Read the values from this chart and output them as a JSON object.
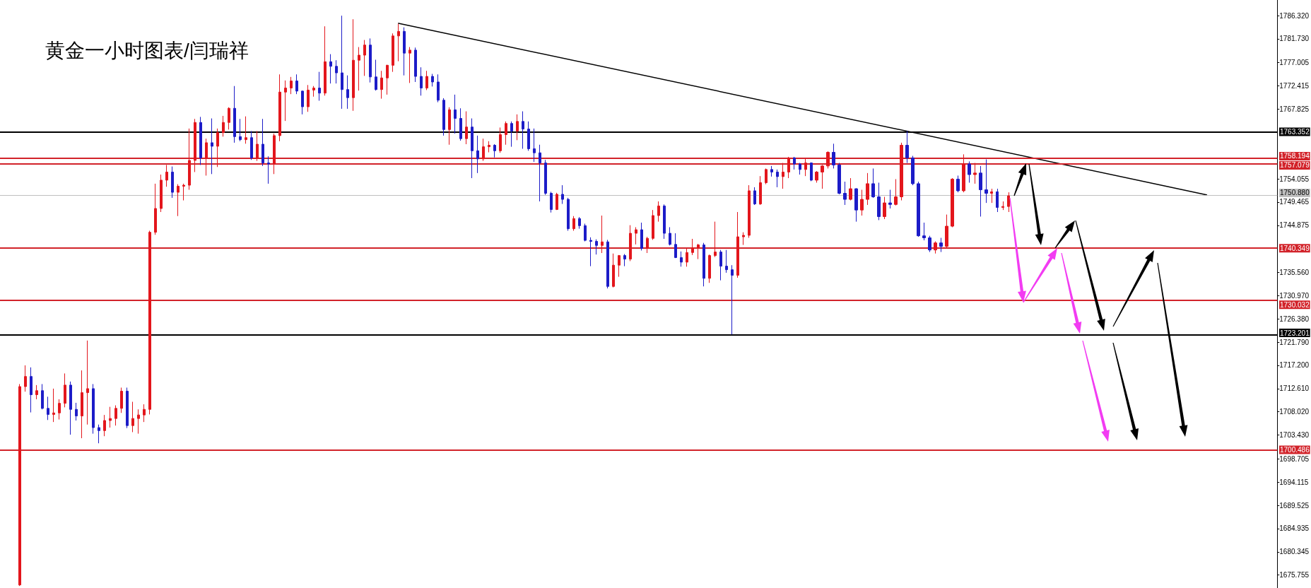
{
  "chart_data": {
    "type": "candlestick",
    "title": "黄金一小时图表/闫瑞祥",
    "categories": [
      null,
      null,
      null,
      null,
      null,
      null,
      null,
      null,
      null,
      null,
      null,
      null,
      null,
      null,
      null,
      null,
      null,
      null,
      null,
      null,
      null,
      null,
      null,
      null,
      null,
      null,
      null,
      null,
      null,
      null,
      null,
      null,
      null,
      null,
      null,
      null,
      null,
      null,
      null,
      null,
      null,
      null,
      null,
      null,
      null,
      null,
      null,
      null,
      null,
      null,
      null,
      null,
      null,
      null,
      null,
      null,
      null,
      null,
      null,
      null,
      null,
      null,
      null,
      null,
      null,
      null,
      null,
      null,
      null,
      null,
      null,
      null,
      null,
      null,
      null,
      null,
      null,
      null,
      null,
      null,
      null,
      null,
      null,
      null,
      null,
      null,
      null,
      null,
      null,
      null,
      null,
      null,
      null,
      null,
      null,
      null,
      null,
      null,
      null,
      null,
      null,
      null,
      null,
      null,
      null,
      null,
      null,
      null,
      null,
      null,
      null,
      null,
      null,
      null,
      null,
      null,
      null,
      null,
      null,
      null,
      null,
      null,
      null,
      null,
      null,
      null,
      null,
      null,
      null,
      null,
      null,
      null,
      null,
      null,
      null,
      null,
      null,
      null,
      null,
      null,
      null,
      null,
      null,
      null,
      null,
      null,
      null,
      null,
      null,
      null,
      null,
      null,
      null,
      null,
      null,
      null,
      null,
      null,
      null,
      null,
      null,
      null,
      null,
      null,
      null,
      null,
      null,
      null,
      null,
      null,
      null,
      null,
      null,
      null,
      null,
      null,
      null,
      null,
      null,
      null,
      null,
      null,
      null,
      null,
      null,
      null,
      null,
      null,
      null,
      null,
      null,
      null,
      null,
      null,
      null,
      null,
      null,
      null,
      null,
      null,
      null,
      null,
      null,
      null,
      null,
      null,
      null,
      null,
      null,
      null,
      null,
      null,
      null,
      null,
      null,
      null,
      null,
      null,
      null,
      null,
      null,
      null,
      null,
      null,
      null,
      null
    ],
    "ohlc": [
      null,
      null,
      null,
      [
        1673.8,
        1713.5,
        1673.6,
        1713.0
      ],
      [
        1713.0,
        1717.2,
        1712.0,
        1715.0
      ],
      [
        1715.0,
        1716.8,
        1707.9,
        1711.4
      ],
      [
        1711.4,
        1713.3,
        1710.5,
        1712.2
      ],
      [
        1712.2,
        1713.5,
        1708.5,
        1708.7
      ],
      [
        1708.7,
        1711.0,
        1706.4,
        1707.5
      ],
      [
        1707.5,
        1712.6,
        1706.0,
        1707.8
      ],
      [
        1707.8,
        1710.5,
        1706.5,
        1709.7
      ],
      [
        1709.7,
        1715.6,
        1708.9,
        1713.3
      ],
      [
        1713.3,
        1714.0,
        1703.5,
        1708.5
      ],
      [
        1708.5,
        1709.8,
        1706.3,
        1707.2
      ],
      [
        1707.2,
        1716.2,
        1702.8,
        1711.8
      ],
      [
        1711.8,
        1722.1,
        1705.5,
        1712.6
      ],
      [
        1712.6,
        1713.5,
        1703.7,
        1704.9
      ],
      [
        1704.9,
        1705.5,
        1701.8,
        1704.3
      ],
      [
        1704.3,
        1707.4,
        1703.2,
        1706.3
      ],
      [
        1706.3,
        1709.0,
        1704.9,
        1706.7
      ],
      [
        1706.7,
        1709.3,
        1705.3,
        1708.7
      ],
      [
        1708.7,
        1712.8,
        1707.8,
        1712.1
      ],
      [
        1712.1,
        1712.8,
        1704.8,
        1705.3
      ],
      [
        1705.3,
        1710.0,
        1704.0,
        1706.7
      ],
      [
        1706.7,
        1708.5,
        1703.7,
        1707.4
      ],
      [
        1707.4,
        1709.5,
        1706.0,
        1708.5
      ],
      [
        1708.5,
        1743.8,
        1707.5,
        1743.5
      ],
      [
        1743.5,
        1753.1,
        1743.0,
        1748.2
      ],
      [
        1748.2,
        1754.9,
        1747.5,
        1753.8
      ],
      [
        1753.8,
        1756.8,
        1752.5,
        1755.4
      ],
      [
        1755.4,
        1756.5,
        1750.3,
        1751.4
      ],
      [
        1751.4,
        1753.0,
        1746.7,
        1752.6
      ],
      [
        1752.6,
        1753.1,
        1749.8,
        1752.8
      ],
      [
        1752.8,
        1764.0,
        1751.9,
        1757.7
      ],
      [
        1757.7,
        1765.9,
        1755.4,
        1765.2
      ],
      [
        1765.2,
        1766.3,
        1756.8,
        1758.2
      ],
      [
        1758.2,
        1762.0,
        1754.7,
        1761.2
      ],
      [
        1761.2,
        1766.0,
        1755.0,
        1760.5
      ],
      [
        1760.5,
        1764.0,
        1756.4,
        1763.2
      ],
      [
        1763.2,
        1766.5,
        1762.4,
        1765.2
      ],
      [
        1765.2,
        1768.2,
        1763.8,
        1768.0
      ],
      [
        1768.0,
        1772.4,
        1761.2,
        1762.4
      ],
      [
        1762.4,
        1765.9,
        1761.5,
        1761.8
      ],
      [
        1761.8,
        1766.4,
        1761.0,
        1762.2
      ],
      [
        1762.2,
        1763.5,
        1757.8,
        1758.2
      ],
      [
        1758.2,
        1763.5,
        1757.6,
        1760.9
      ],
      [
        1760.9,
        1765.9,
        1756.6,
        1757.2
      ],
      [
        1757.2,
        1758.5,
        1753.1,
        1757.0
      ],
      [
        1757.0,
        1763.0,
        1755.0,
        1762.6
      ],
      [
        1762.6,
        1774.7,
        1761.5,
        1771.2
      ],
      [
        1771.2,
        1773.5,
        1765.5,
        1772.0
      ],
      [
        1772.0,
        1774.2,
        1770.8,
        1773.4
      ],
      [
        1773.4,
        1774.7,
        1770.8,
        1771.4
      ],
      [
        1771.4,
        1771.5,
        1766.8,
        1768.3
      ],
      [
        1768.3,
        1772.6,
        1767.3,
        1771.6
      ],
      [
        1771.6,
        1772.4,
        1770.3,
        1772.0
      ],
      [
        1772.0,
        1775.2,
        1769.5,
        1771.0
      ],
      [
        1771.0,
        1784.2,
        1770.5,
        1777.2
      ],
      [
        1777.2,
        1778.7,
        1772.9,
        1776.3
      ],
      [
        1776.3,
        1777.5,
        1772.9,
        1775.0
      ],
      [
        1775.0,
        1786.3,
        1767.9,
        1771.7
      ],
      [
        1771.7,
        1774.5,
        1767.9,
        1770.1
      ],
      [
        1770.1,
        1785.6,
        1767.5,
        1777.5
      ],
      [
        1777.5,
        1780.1,
        1771.5,
        1778.5
      ],
      [
        1778.5,
        1781.5,
        1774.4,
        1780.5
      ],
      [
        1780.5,
        1781.8,
        1773.1,
        1774.2
      ],
      [
        1774.2,
        1777.6,
        1771.5,
        1771.7
      ],
      [
        1771.7,
        1775.4,
        1769.9,
        1774.0
      ],
      [
        1774.0,
        1776.6,
        1770.7,
        1776.5
      ],
      [
        1776.5,
        1782.8,
        1775.2,
        1782.3
      ],
      [
        1782.3,
        1784.7,
        1777.3,
        1783.2
      ],
      [
        1783.2,
        1784.0,
        1774.5,
        1778.9
      ],
      [
        1778.9,
        1780.1,
        1773.0,
        1779.5
      ],
      [
        1779.5,
        1780.0,
        1773.2,
        1774.3
      ],
      [
        1774.3,
        1776.1,
        1770.5,
        1772.0
      ],
      [
        1772.0,
        1775.4,
        1771.6,
        1774.3
      ],
      [
        1774.3,
        1774.8,
        1772.3,
        1773.2
      ],
      [
        1773.2,
        1774.7,
        1769.2,
        1769.6
      ],
      [
        1769.6,
        1770.0,
        1762.6,
        1763.8
      ],
      [
        1763.8,
        1768.2,
        1760.8,
        1767.7
      ],
      [
        1767.7,
        1770.7,
        1763.0,
        1766.0
      ],
      [
        1766.0,
        1768.0,
        1761.6,
        1762.0
      ],
      [
        1762.0,
        1767.4,
        1760.9,
        1764.3
      ],
      [
        1764.3,
        1766.0,
        1754.2,
        1759.6
      ],
      [
        1759.6,
        1762.6,
        1755.2,
        1758.0
      ],
      [
        1758.0,
        1762.0,
        1757.6,
        1760.4
      ],
      [
        1760.4,
        1761.5,
        1759.3,
        1760.7
      ],
      [
        1760.7,
        1760.9,
        1758.3,
        1759.6
      ],
      [
        1759.6,
        1764.2,
        1759.2,
        1762.8
      ],
      [
        1762.8,
        1765.4,
        1760.8,
        1765.0
      ],
      [
        1765.0,
        1765.4,
        1760.4,
        1763.5
      ],
      [
        1763.5,
        1766.8,
        1761.7,
        1765.4
      ],
      [
        1765.4,
        1767.4,
        1760.0,
        1763.9
      ],
      [
        1763.9,
        1765.4,
        1759.6,
        1760.0
      ],
      [
        1760.0,
        1764.0,
        1757.4,
        1759.2
      ],
      [
        1759.2,
        1760.8,
        1749.6,
        1757.2
      ],
      [
        1757.2,
        1757.8,
        1750.9,
        1751.2
      ],
      [
        1751.2,
        1751.5,
        1747.4,
        1748.0
      ],
      [
        1748.0,
        1751.3,
        1747.9,
        1751.0
      ],
      [
        1751.0,
        1752.8,
        1749.1,
        1750.0
      ],
      [
        1750.0,
        1750.3,
        1743.8,
        1744.2
      ],
      [
        1744.2,
        1746.7,
        1743.8,
        1746.2
      ],
      [
        1746.2,
        1746.5,
        1744.2,
        1744.8
      ],
      [
        1744.8,
        1745.2,
        1741.7,
        1741.9
      ],
      [
        1741.9,
        1742.5,
        1736.8,
        1741.7
      ],
      [
        1741.7,
        1742.1,
        1739.1,
        1740.9
      ],
      [
        1740.9,
        1746.8,
        1739.4,
        1741.6
      ],
      [
        1741.6,
        1742.0,
        1732.4,
        1732.8
      ],
      [
        1732.8,
        1739.3,
        1732.6,
        1737.0
      ],
      [
        1737.0,
        1739.0,
        1734.7,
        1738.9
      ],
      [
        1738.9,
        1739.2,
        1736.8,
        1738.2
      ],
      [
        1738.2,
        1744.9,
        1737.8,
        1743.3
      ],
      [
        1743.3,
        1744.5,
        1741.1,
        1744.0
      ],
      [
        1744.0,
        1745.4,
        1739.9,
        1740.3
      ],
      [
        1740.3,
        1742.6,
        1739.4,
        1742.3
      ],
      [
        1742.3,
        1747.9,
        1742.0,
        1746.8
      ],
      [
        1746.8,
        1749.6,
        1745.6,
        1748.7
      ],
      [
        1748.7,
        1749.0,
        1742.2,
        1743.3
      ],
      [
        1743.3,
        1744.5,
        1740.9,
        1741.1
      ],
      [
        1741.1,
        1743.3,
        1738.4,
        1738.5
      ],
      [
        1738.5,
        1739.7,
        1736.7,
        1737.6
      ],
      [
        1737.6,
        1740.3,
        1736.7,
        1739.5
      ],
      [
        1739.5,
        1742.2,
        1739.0,
        1740.4
      ],
      [
        1740.4,
        1741.2,
        1738.2,
        1741.0
      ],
      [
        1741.0,
        1741.4,
        1732.8,
        1734.4
      ],
      [
        1734.4,
        1739.1,
        1733.5,
        1738.9
      ],
      [
        1738.9,
        1745.6,
        1738.6,
        1739.6
      ],
      [
        1739.6,
        1740.0,
        1734.0,
        1736.8
      ],
      [
        1736.8,
        1740.0,
        1735.5,
        1736.1
      ],
      [
        1736.1,
        1737.0,
        1723.3,
        1735.0
      ],
      [
        1735.0,
        1747.5,
        1734.5,
        1742.6
      ],
      [
        1742.6,
        1743.5,
        1741.0,
        1742.9
      ],
      [
        1742.9,
        1752.8,
        1742.4,
        1751.7
      ],
      [
        1751.7,
        1752.4,
        1748.9,
        1749.1
      ],
      [
        1749.1,
        1754.6,
        1748.9,
        1753.3
      ],
      [
        1753.3,
        1756.1,
        1753.0,
        1755.9
      ],
      [
        1755.9,
        1756.6,
        1754.5,
        1755.4
      ],
      [
        1755.4,
        1755.9,
        1752.4,
        1754.5
      ],
      [
        1754.5,
        1757.2,
        1752.1,
        1755.4
      ],
      [
        1755.4,
        1758.4,
        1754.2,
        1758.2
      ],
      [
        1758.2,
        1758.4,
        1755.9,
        1757.0
      ],
      [
        1757.0,
        1757.2,
        1754.9,
        1755.9
      ],
      [
        1755.9,
        1758.2,
        1754.6,
        1757.2
      ],
      [
        1757.2,
        1757.3,
        1753.6,
        1753.8
      ],
      [
        1753.8,
        1755.6,
        1753.3,
        1755.4
      ],
      [
        1755.4,
        1756.8,
        1752.1,
        1756.6
      ],
      [
        1756.6,
        1759.5,
        1756.1,
        1759.3
      ],
      [
        1759.3,
        1761.0,
        1756.1,
        1756.8
      ],
      [
        1756.8,
        1757.2,
        1751.0,
        1751.2
      ],
      [
        1751.2,
        1753.5,
        1748.9,
        1750.0
      ],
      [
        1750.0,
        1754.2,
        1749.8,
        1752.1
      ],
      [
        1752.1,
        1752.2,
        1745.6,
        1747.9
      ],
      [
        1747.9,
        1751.9,
        1746.8,
        1750.0
      ],
      [
        1750.0,
        1755.2,
        1748.9,
        1753.1
      ],
      [
        1753.1,
        1756.1,
        1750.3,
        1750.5
      ],
      [
        1750.5,
        1753.3,
        1745.9,
        1746.6
      ],
      [
        1746.6,
        1750.5,
        1746.1,
        1749.3
      ],
      [
        1749.3,
        1751.9,
        1748.2,
        1749.0
      ],
      [
        1749.0,
        1754.0,
        1748.8,
        1750.5
      ],
      [
        1750.5,
        1761.2,
        1749.8,
        1760.7
      ],
      [
        1760.7,
        1763.5,
        1757.2,
        1758.2
      ],
      [
        1758.2,
        1758.6,
        1752.8,
        1753.1
      ],
      [
        1753.1,
        1753.5,
        1742.6,
        1742.8
      ],
      [
        1742.8,
        1745.4,
        1741.9,
        1742.4
      ],
      [
        1742.4,
        1742.8,
        1739.6,
        1740.0
      ],
      [
        1740.0,
        1741.7,
        1739.3,
        1741.4
      ],
      [
        1741.4,
        1742.4,
        1739.6,
        1740.7
      ],
      [
        1740.7,
        1747.0,
        1740.3,
        1744.7
      ],
      [
        1744.7,
        1754.2,
        1744.5,
        1754.0
      ],
      [
        1754.0,
        1754.7,
        1751.4,
        1751.7
      ],
      [
        1751.7,
        1758.9,
        1751.4,
        1757.0
      ],
      [
        1757.0,
        1757.5,
        1753.3,
        1754.9
      ],
      [
        1754.9,
        1757.2,
        1753.1,
        1755.2
      ],
      [
        1755.2,
        1756.6,
        1746.6,
        1751.9
      ],
      [
        1751.9,
        1757.9,
        1749.3,
        1751.2
      ],
      [
        1751.2,
        1752.1,
        1749.3,
        1751.5
      ],
      [
        1751.5,
        1752.1,
        1747.5,
        1748.4
      ],
      [
        1748.4,
        1749.6,
        1747.9,
        1748.6
      ],
      [
        1748.6,
        1751.4,
        1747.5,
        1750.7
      ],
      null,
      null,
      null,
      null,
      null,
      null,
      null,
      null,
      null,
      null,
      null,
      null,
      null,
      null,
      null,
      null,
      null,
      null,
      null,
      null,
      null,
      null,
      null,
      null,
      null,
      null,
      null,
      null,
      null,
      null,
      null,
      null,
      null,
      null,
      null,
      null,
      null,
      null,
      null,
      null,
      null,
      null,
      null,
      null,
      null,
      null,
      null
    ],
    "colors": [
      null,
      null,
      null,
      "#e3161c",
      "#e3161c",
      "#1c1cc8",
      "#e3161c",
      "#1c1cc8",
      "#1c1cc8",
      "#e3161c",
      "#e3161c",
      "#e3161c",
      "#1c1cc8",
      "#1c1cc8",
      "#e3161c",
      "#e3161c",
      "#1c1cc8",
      "#1c1cc8",
      "#e3161c",
      "#e3161c",
      "#e3161c",
      "#e3161c",
      "#1c1cc8",
      "#e3161c",
      "#e3161c",
      "#e3161c",
      "#e3161c",
      "#e3161c",
      "#e3161c",
      "#e3161c",
      "#1c1cc8",
      "#e3161c",
      "#e3161c",
      "#e3161c",
      "#e3161c",
      "#1c1cc8",
      "#e3161c",
      "#1c1cc8",
      "#e3161c",
      "#e3161c",
      "#e3161c",
      "#1c1cc8",
      "#1c1cc8",
      "#e3161c",
      "#1c1cc8",
      "#e3161c",
      "#1c1cc8",
      "#1c1cc8",
      "#e3161c",
      "#e3161c",
      "#e3161c",
      "#e3161c",
      "#1c1cc8",
      "#1c1cc8",
      "#e3161c",
      "#e3161c",
      "#1c1cc8",
      "#e3161c",
      "#1c1cc8",
      "#1c1cc8",
      "#1c1cc8",
      "#1c1cc8",
      "#e3161c",
      "#e3161c",
      "#e3161c",
      "#1c1cc8",
      "#1c1cc8",
      "#e3161c",
      "#e3161c",
      "#e3161c",
      "#e3161c",
      "#1c1cc8",
      "#e3161c",
      "#1c1cc8",
      "#1c1cc8",
      "#e3161c",
      "#1c1cc8",
      "#1c1cc8",
      "#1c1cc8",
      "#e3161c",
      "#1c1cc8",
      "#1c1cc8",
      "#e3161c",
      "#1c1cc8",
      "#1c1cc8",
      "#e3161c",
      "#e3161c",
      "#1c1cc8",
      "#e3161c",
      "#e3161c",
      "#1c1cc8",
      "#e3161c",
      "#1c1cc8",
      "#1c1cc8",
      "#1c1cc8",
      "#1c1cc8",
      "#1c1cc8",
      "#1c1cc8",
      "#e3161c",
      "#1c1cc8",
      "#1c1cc8",
      "#e3161c",
      "#1c1cc8",
      "#1c1cc8",
      "#1c1cc8",
      "#1c1cc8",
      "#e3161c",
      "#1c1cc8",
      "#e3161c",
      "#e3161c",
      "#1c1cc8",
      "#e3161c",
      "#e3161c",
      "#1c1cc8",
      "#e3161c",
      "#e3161c",
      "#e3161c",
      "#1c1cc8",
      "#1c1cc8",
      "#1c1cc8",
      "#1c1cc8",
      "#e3161c",
      "#e3161c",
      "#e3161c",
      "#1c1cc8",
      "#e3161c",
      "#e3161c",
      "#1c1cc8",
      "#1c1cc8",
      "#1c1cc8",
      "#e3161c",
      "#e3161c",
      "#e3161c",
      "#1c1cc8",
      "#e3161c",
      "#e3161c",
      "#1c1cc8",
      "#1c1cc8",
      "#e3161c",
      "#e3161c",
      "#1c1cc8",
      "#1c1cc8",
      "#e3161c",
      "#1c1cc8",
      "#e3161c",
      "#e3161c",
      "#e3161c",
      "#1c1cc8",
      "#1c1cc8",
      "#1c1cc8",
      "#e3161c",
      "#1c1cc8",
      "#e3161c",
      "#e3161c",
      "#1c1cc8",
      "#1c1cc8",
      "#e3161c",
      "#1c1cc8",
      "#e3161c",
      "#e3161c",
      "#1c1cc8",
      "#1c1cc8",
      "#1c1cc8",
      "#1c1cc8",
      "#1c1cc8",
      "#e3161c",
      "#1c1cc8",
      "#e3161c",
      "#e3161c",
      "#1c1cc8",
      "#e3161c",
      "#1c1cc8",
      "#e3161c",
      "#1c1cc8",
      "#1c1cc8",
      "#e3161c",
      "#1c1cc8",
      "#e3161c",
      "#e3161c",
      null,
      null,
      null,
      null,
      null,
      null,
      null,
      null,
      null,
      null,
      null,
      null,
      null,
      null,
      null,
      null,
      null,
      null,
      null,
      null,
      null,
      null,
      null,
      null,
      null,
      null,
      null,
      null,
      null,
      null,
      null,
      null,
      null,
      null,
      null,
      null,
      null,
      null,
      null,
      null,
      null,
      null,
      null,
      null,
      null,
      null,
      null
    ],
    "series": [
      {
        "type": "line",
        "color": "#000000",
        "values": [
          null,
          null,
          null,
          null,
          null,
          null,
          null,
          null,
          null,
          null,
          null,
          null,
          null,
          null,
          null,
          null,
          null,
          null,
          null,
          null,
          null,
          null,
          null,
          null,
          null,
          null,
          null,
          null,
          null,
          null,
          null,
          null,
          null,
          null,
          null,
          null,
          null,
          null,
          null,
          null,
          null,
          null,
          null,
          null,
          null,
          null,
          null,
          null,
          null,
          null,
          null,
          null,
          null,
          null,
          null,
          null,
          null,
          null,
          null,
          null,
          null,
          null,
          null,
          null,
          null,
          null,
          null,
          null,
          null,
          null,
          1784.8,
          null,
          null,
          null,
          null,
          null,
          null,
          null,
          null,
          null,
          null,
          null,
          null,
          null,
          null,
          null,
          null,
          null,
          null,
          null,
          null,
          null,
          null,
          null,
          null,
          null,
          null,
          null,
          null,
          null,
          null,
          null,
          null,
          null,
          null,
          null,
          null,
          null,
          null,
          null,
          null,
          null,
          null,
          null,
          null,
          null,
          null,
          null,
          null,
          null,
          null,
          null,
          null,
          null,
          null,
          null,
          null,
          null,
          null,
          null,
          null,
          null,
          null,
          null,
          null,
          null,
          null,
          null,
          null,
          null,
          null,
          null,
          null,
          null,
          null,
          null,
          null,
          null,
          null,
          null,
          null,
          null,
          null,
          null,
          null,
          null,
          null,
          null,
          null,
          null,
          null,
          null,
          null,
          null,
          null,
          null,
          null,
          null,
          null,
          null,
          null,
          null,
          null,
          null,
          null,
          null,
          null,
          null,
          null,
          null,
          null,
          null,
          null,
          null,
          null,
          null,
          null,
          null,
          null,
          null,
          null,
          null,
          null,
          null,
          null,
          null,
          null,
          null,
          null,
          null,
          null,
          null,
          null,
          null,
          null,
          null,
          null,
          null,
          null,
          null,
          null,
          null,
          null,
          1750.9,
          null,
          null,
          null,
          null,
          null,
          null,
          null,
          null,
          null,
          null,
          null,
          null
        ]
      }
    ],
    "ylim": [
      1673.2,
      1789.4
    ],
    "yticks": [
      {
        "value": 1786.32,
        "label": "1786.320"
      },
      {
        "value": 1781.73,
        "label": "1781.730"
      },
      1777.005,
      1772.415,
      1767.825,
      1754.055,
      1749.465,
      1744.875,
      {
        "value": 1735.56,
        "label": "1735.560"
      },
      {
        "value": 1730.97,
        "label": "1730.970"
      },
      {
        "value": 1726.38,
        "label": "1726.380"
      },
      {
        "value": 1721.79,
        "label": "1721.790"
      },
      {
        "value": 1717.2,
        "label": "1717.200"
      },
      {
        "value": 1712.61,
        "label": "1712.610"
      },
      {
        "value": 1708.02,
        "label": "1708.020"
      },
      {
        "value": 1703.43,
        "label": "1703.430"
      },
      1698.705,
      1694.115,
      1689.525,
      1684.935,
      1680.345,
      1675.755
    ],
    "ref_lines": [
      {
        "axis": "y",
        "value": 1763.352,
        "label": "1763.352",
        "color": "#000000"
      },
      {
        "axis": "y",
        "value": 1758.194,
        "label": "1758.194",
        "color": "#d2232a"
      },
      {
        "axis": "y",
        "value": 1757.079,
        "label": "1757.079",
        "color": "#d2232a"
      },
      {
        "axis": "y",
        "value": 1750.88,
        "label": "1750.880",
        "color": "#c0c0c0"
      },
      {
        "axis": "y",
        "value": 1740.349,
        "label": "1740.349",
        "color": "#d2232a"
      },
      {
        "axis": "y",
        "value": 1730.032,
        "label": "1730.032",
        "color": "#d2232a"
      },
      {
        "axis": "y",
        "value": 1723.201,
        "label": "1723.201",
        "color": "#000000"
      },
      {
        "axis": "y",
        "value": 1700.486,
        "label": "1700.486",
        "color": "#d2232a"
      }
    ],
    "tick_labels": "y"
  }
}
